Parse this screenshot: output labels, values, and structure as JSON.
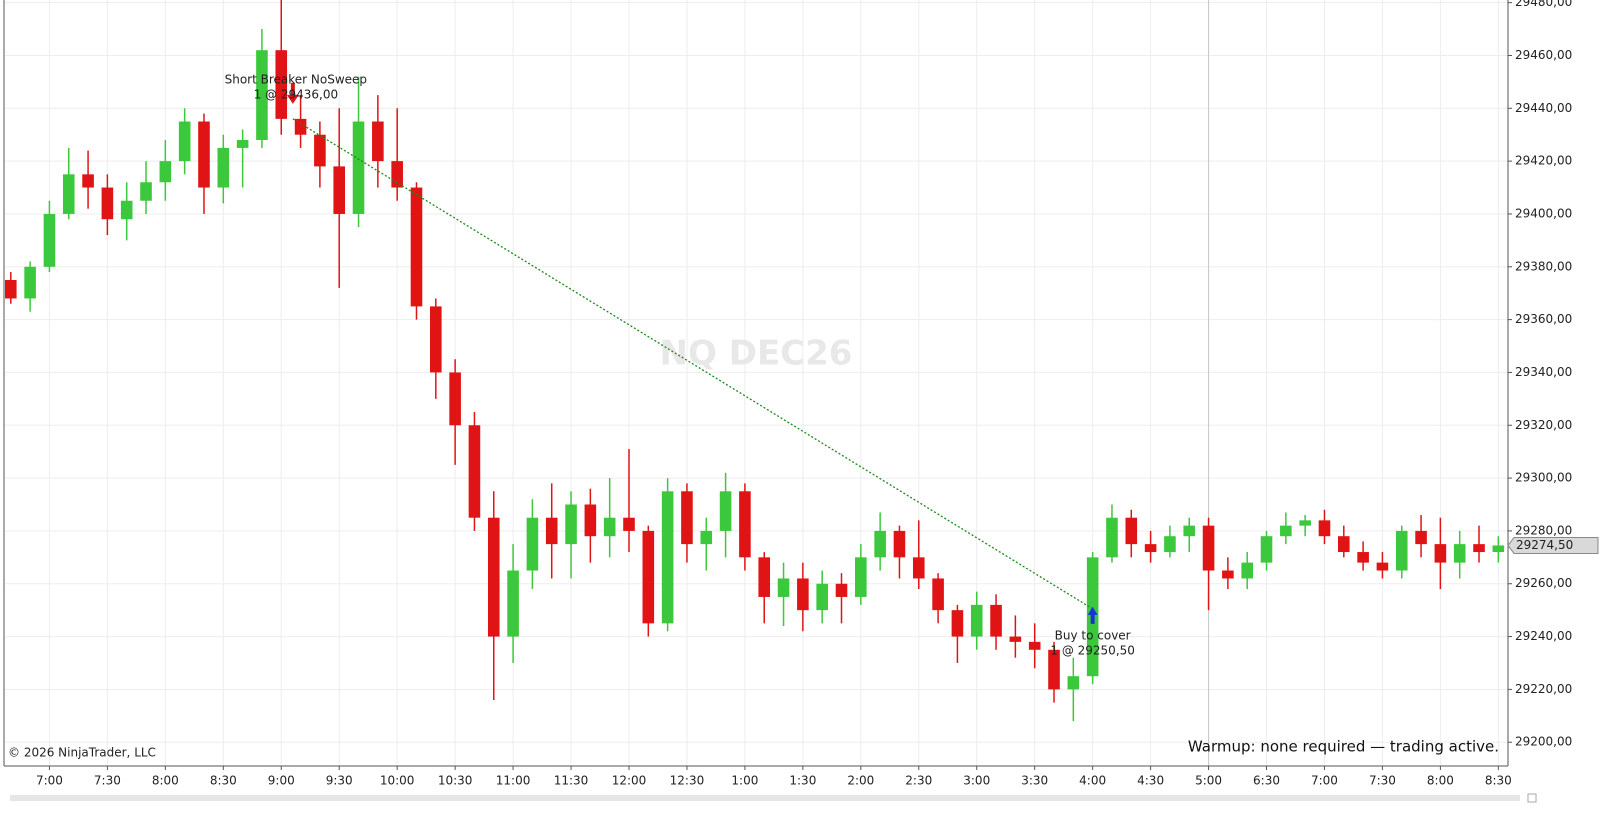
{
  "chart_data": {
    "type": "candlestick",
    "watermark": "NQ DEC26",
    "copyright": "© 2026 NinjaTrader, LLC",
    "status": "Warmup: none required — trading active.",
    "up_color": "#3cc83c",
    "down_color": "#e01414",
    "grid": true,
    "xlim": [
      -0.3,
      77.5
    ],
    "ylim": [
      29191,
      29481
    ],
    "xticks": [
      {
        "value": 2,
        "label": "7:00"
      },
      {
        "value": 5,
        "label": "7:30"
      },
      {
        "value": 8,
        "label": "8:00"
      },
      {
        "value": 11,
        "label": "8:30"
      },
      {
        "value": 14,
        "label": "9:00"
      },
      {
        "value": 17,
        "label": "9:30"
      },
      {
        "value": 20,
        "label": "10:00"
      },
      {
        "value": 23,
        "label": "10:30"
      },
      {
        "value": 26,
        "label": "11:00"
      },
      {
        "value": 29,
        "label": "11:30"
      },
      {
        "value": 32,
        "label": "12:00"
      },
      {
        "value": 35,
        "label": "12:30"
      },
      {
        "value": 38,
        "label": "1:00"
      },
      {
        "value": 41,
        "label": "1:30"
      },
      {
        "value": 44,
        "label": "2:00"
      },
      {
        "value": 47,
        "label": "2:30"
      },
      {
        "value": 50,
        "label": "3:00"
      },
      {
        "value": 53,
        "label": "3:30"
      },
      {
        "value": 56,
        "label": "4:00"
      },
      {
        "value": 59,
        "label": "4:30"
      },
      {
        "value": 62,
        "label": "5:00"
      },
      {
        "value": 65,
        "label": "6:30"
      },
      {
        "value": 68,
        "label": "7:00"
      },
      {
        "value": 71,
        "label": "7:30"
      },
      {
        "value": 74,
        "label": "8:00"
      },
      {
        "value": 77,
        "label": "8:30"
      }
    ],
    "session_break": 62,
    "yticks": [
      {
        "value": 29200,
        "label": "29200,00"
      },
      {
        "value": 29220,
        "label": "29220,00"
      },
      {
        "value": 29240,
        "label": "29240,00"
      },
      {
        "value": 29260,
        "label": "29260,00"
      },
      {
        "value": 29280,
        "label": "29280,00"
      },
      {
        "value": 29300,
        "label": "29300,00"
      },
      {
        "value": 29320,
        "label": "29320,00"
      },
      {
        "value": 29340,
        "label": "29340,00"
      },
      {
        "value": 29360,
        "label": "29360,00"
      },
      {
        "value": 29380,
        "label": "29380,00"
      },
      {
        "value": 29400,
        "label": "29400,00"
      },
      {
        "value": 29420,
        "label": "29420,00"
      },
      {
        "value": 29440,
        "label": "29440,00"
      },
      {
        "value": 29460,
        "label": "29460,00"
      },
      {
        "value": 29480,
        "label": "29480,00"
      }
    ],
    "last_price": {
      "value": 29274.5,
      "label": "29274,50"
    },
    "open": [
      29375,
      29368,
      29380,
      29400,
      29415,
      29410,
      29398,
      29405,
      29412,
      29420,
      29435,
      29410,
      29425,
      29428,
      29462,
      29436,
      29430,
      29418,
      29400,
      29435,
      29420,
      29410,
      29365,
      29340,
      29320,
      29285,
      29240,
      29265,
      29285,
      29275,
      29290,
      29278,
      29285,
      29280,
      29245,
      29295,
      29275,
      29280,
      29295,
      29270,
      29255,
      29262,
      29250,
      29260,
      29255,
      29270,
      29280,
      29270,
      29262,
      29250,
      29240,
      29252,
      29240,
      29238,
      29235,
      29220,
      29225,
      29270,
      29285,
      29275,
      29272,
      29278,
      29282,
      29265,
      29262,
      29268,
      29278,
      29282,
      29284,
      29278,
      29272,
      29268,
      29265,
      29280,
      29275,
      29268,
      29275,
      29272
    ],
    "high": [
      29378,
      29382,
      29405,
      29425,
      29424,
      29415,
      29412,
      29420,
      29428,
      29440,
      29438,
      29430,
      29432,
      29470,
      29481,
      29445,
      29435,
      29440,
      29452,
      29445,
      29440,
      29412,
      29368,
      29345,
      29325,
      29295,
      29275,
      29292,
      29298,
      29295,
      29296,
      29300,
      29311,
      29282,
      29300,
      29298,
      29285,
      29302,
      29298,
      29272,
      29268,
      29268,
      29265,
      29264,
      29275,
      29287,
      29282,
      29284,
      29264,
      29252,
      29257,
      29256,
      29248,
      29245,
      29238,
      29232,
      29272,
      29290,
      29288,
      29280,
      29282,
      29285,
      29285,
      29270,
      29272,
      29280,
      29287,
      29286,
      29288,
      29282,
      29276,
      29272,
      29282,
      29286,
      29285,
      29280,
      29282,
      29278
    ],
    "low": [
      29366,
      29363,
      29378,
      29398,
      29402,
      29392,
      29390,
      29400,
      29405,
      29415,
      29400,
      29404,
      29410,
      29425,
      29430,
      29425,
      29410,
      29372,
      29395,
      29410,
      29405,
      29360,
      29330,
      29305,
      29280,
      29216,
      29230,
      29258,
      29262,
      29262,
      29268,
      29270,
      29272,
      29240,
      29242,
      29268,
      29265,
      29270,
      29265,
      29245,
      29244,
      29242,
      29245,
      29245,
      29252,
      29265,
      29262,
      29258,
      29245,
      29230,
      29235,
      29235,
      29232,
      29228,
      29215,
      29208,
      29222,
      29268,
      29270,
      29268,
      29270,
      29272,
      29250,
      29258,
      29258,
      29265,
      29275,
      29278,
      29275,
      29270,
      29265,
      29262,
      29262,
      29270,
      29258,
      29262,
      29268,
      29268
    ],
    "close": [
      29368,
      29380,
      29400,
      29415,
      29410,
      29398,
      29405,
      29412,
      29420,
      29435,
      29410,
      29425,
      29428,
      29462,
      29436,
      29430,
      29418,
      29400,
      29435,
      29420,
      29410,
      29365,
      29340,
      29320,
      29285,
      29240,
      29265,
      29285,
      29275,
      29290,
      29278,
      29285,
      29280,
      29245,
      29295,
      29275,
      29280,
      29295,
      29270,
      29255,
      29262,
      29250,
      29260,
      29255,
      29270,
      29280,
      29270,
      29262,
      29250,
      29240,
      29252,
      29240,
      29238,
      29235,
      29220,
      29225,
      29270,
      29285,
      29275,
      29272,
      29278,
      29282,
      29265,
      29262,
      29268,
      29278,
      29282,
      29284,
      29278,
      29272,
      29268,
      29265,
      29280,
      29275,
      29268,
      29275,
      29272,
      29274.5
    ],
    "trades": [
      {
        "name": "Short Breaker NoSweep",
        "label": "1 @ 29436,00",
        "x": 14.6,
        "price": 29436,
        "side": "short",
        "color": "#e01414"
      },
      {
        "name": "Buy to cover",
        "label": "1 @ 29250,50",
        "x": 56,
        "price": 29250.5,
        "side": "cover",
        "color": "#1a2fd6"
      }
    ],
    "trade_line_color": "#1e8a1e"
  }
}
